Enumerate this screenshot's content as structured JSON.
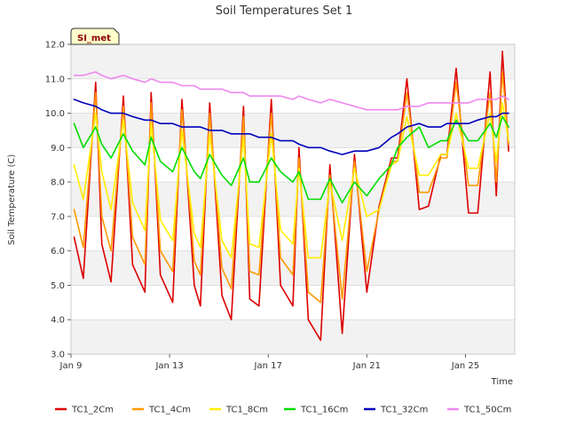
{
  "chart_data": {
    "type": "line",
    "title": "Soil Temperatures Set 1",
    "xlabel": "Time",
    "ylabel": "Soil Temperature (C)",
    "badge": "SI_met",
    "ylim": [
      3.0,
      12.0
    ],
    "xlim": [
      "Jan 9",
      "Jan 27"
    ],
    "x_ticks": [
      "Jan 9",
      "Jan 13",
      "Jan 17",
      "Jan 21",
      "Jan 25"
    ],
    "y_ticks": [
      "3.0",
      "4.0",
      "5.0",
      "6.0",
      "7.0",
      "8.0",
      "9.0",
      "10.0",
      "11.0",
      "12.0"
    ],
    "grid": "horizontal bands",
    "legend_position": "bottom",
    "x": [
      "Jan 9 03:00",
      "Jan 9 12:00",
      "Jan 10 00:00",
      "Jan 10 06:00",
      "Jan 10 15:00",
      "Jan 11 03:00",
      "Jan 11 12:00",
      "Jan 12 00:00",
      "Jan 12 06:00",
      "Jan 12 15:00",
      "Jan 13 03:00",
      "Jan 13 12:00",
      "Jan 14 00:00",
      "Jan 14 06:00",
      "Jan 14 15:00",
      "Jan 15 03:00",
      "Jan 15 12:00",
      "Jan 16 00:00",
      "Jan 16 06:00",
      "Jan 16 15:00",
      "Jan 17 03:00",
      "Jan 17 12:00",
      "Jan 18 00:00",
      "Jan 18 06:00",
      "Jan 18 15:00",
      "Jan 19 03:00",
      "Jan 19 12:00",
      "Jan 20 00:00",
      "Jan 20 12:00",
      "Jan 21 00:00",
      "Jan 21 12:00",
      "Jan 22 00:00",
      "Jan 22 06:00",
      "Jan 22 15:00",
      "Jan 23 03:00",
      "Jan 23 12:00",
      "Jan 24 00:00",
      "Jan 24 06:00",
      "Jan 24 15:00",
      "Jan 25 03:00",
      "Jan 25 12:00",
      "Jan 26 00:00",
      "Jan 26 06:00",
      "Jan 26 12:00",
      "Jan 26 18:00"
    ],
    "series": [
      {
        "name": "TC1_2Cm",
        "color": "#dd0000",
        "values": [
          6.4,
          5.2,
          10.9,
          6.2,
          5.1,
          10.5,
          5.6,
          4.8,
          10.6,
          5.3,
          4.5,
          10.4,
          5.0,
          4.4,
          10.3,
          4.7,
          4.0,
          10.2,
          4.6,
          4.4,
          10.4,
          5.0,
          4.4,
          9.0,
          4.0,
          3.4,
          8.5,
          3.6,
          8.8,
          4.8,
          7.3,
          8.7,
          8.7,
          11.0,
          7.2,
          7.3,
          8.8,
          8.8,
          11.3,
          7.1,
          7.1,
          11.2,
          7.6,
          11.8,
          8.9
        ]
      },
      {
        "name": "TC1_4Cm",
        "color": "#ff9900",
        "values": [
          7.2,
          6.1,
          10.6,
          7.0,
          6.0,
          10.2,
          6.4,
          5.6,
          10.3,
          6.0,
          5.4,
          10.1,
          5.7,
          5.3,
          10.0,
          5.5,
          4.9,
          9.9,
          5.4,
          5.3,
          10.0,
          5.8,
          5.3,
          8.7,
          4.8,
          4.5,
          8.2,
          4.6,
          8.6,
          5.4,
          7.2,
          8.6,
          8.6,
          10.6,
          7.7,
          7.7,
          8.7,
          8.7,
          10.9,
          7.9,
          7.9,
          10.6,
          8.0,
          11.2,
          9.1
        ]
      },
      {
        "name": "TC1_8Cm",
        "color": "#ffee00",
        "values": [
          8.5,
          7.5,
          10.0,
          8.3,
          7.2,
          9.8,
          7.4,
          6.6,
          9.7,
          6.9,
          6.3,
          9.5,
          6.5,
          6.1,
          9.4,
          6.3,
          5.8,
          9.3,
          6.2,
          6.1,
          9.4,
          6.6,
          6.2,
          8.4,
          5.8,
          5.8,
          8.0,
          6.3,
          8.4,
          7.0,
          7.2,
          8.5,
          8.6,
          9.9,
          8.2,
          8.2,
          8.8,
          8.8,
          10.0,
          8.4,
          8.4,
          10.0,
          8.6,
          10.3,
          9.2
        ]
      },
      {
        "name": "TC1_16Cm",
        "color": "#00dd00",
        "values": [
          9.7,
          9.0,
          9.6,
          9.1,
          8.7,
          9.4,
          8.9,
          8.5,
          9.3,
          8.6,
          8.3,
          9.0,
          8.3,
          8.1,
          8.8,
          8.2,
          7.9,
          8.7,
          8.0,
          8.0,
          8.7,
          8.3,
          8.0,
          8.3,
          7.5,
          7.5,
          8.1,
          7.4,
          8.0,
          7.6,
          8.1,
          8.5,
          9.0,
          9.3,
          9.6,
          9.0,
          9.2,
          9.2,
          9.8,
          9.2,
          9.2,
          9.7,
          9.3,
          9.9,
          9.6
        ]
      },
      {
        "name": "TC1_32Cm",
        "color": "#0000bb",
        "values": [
          10.4,
          10.3,
          10.2,
          10.1,
          10.0,
          10.0,
          9.9,
          9.8,
          9.8,
          9.7,
          9.7,
          9.6,
          9.6,
          9.6,
          9.5,
          9.5,
          9.4,
          9.4,
          9.4,
          9.3,
          9.3,
          9.2,
          9.2,
          9.1,
          9.0,
          9.0,
          8.9,
          8.8,
          8.9,
          8.9,
          9.0,
          9.3,
          9.4,
          9.6,
          9.7,
          9.6,
          9.6,
          9.7,
          9.7,
          9.7,
          9.8,
          9.9,
          9.9,
          10.0,
          10.0
        ]
      },
      {
        "name": "TC1_50Cm",
        "color": "#ee88ee",
        "values": [
          11.1,
          11.1,
          11.2,
          11.1,
          11.0,
          11.1,
          11.0,
          10.9,
          11.0,
          10.9,
          10.9,
          10.8,
          10.8,
          10.7,
          10.7,
          10.7,
          10.6,
          10.6,
          10.5,
          10.5,
          10.5,
          10.5,
          10.4,
          10.5,
          10.4,
          10.3,
          10.4,
          10.3,
          10.2,
          10.1,
          10.1,
          10.1,
          10.1,
          10.2,
          10.2,
          10.3,
          10.3,
          10.3,
          10.3,
          10.3,
          10.4,
          10.4,
          10.4,
          10.5,
          10.4
        ]
      }
    ]
  }
}
